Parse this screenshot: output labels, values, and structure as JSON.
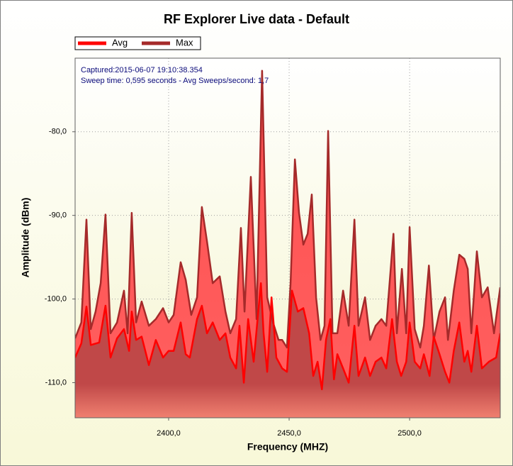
{
  "chart_data": {
    "type": "area",
    "title": "RF Explorer Live data - Default",
    "xlabel": "Frequency (MHZ)",
    "ylabel": "Amplitude (dBm)",
    "annotations": [
      "Captured:2015-06-07 19:10:38.354",
      "Sweep time: 0,595 seconds - Avg Sweeps/second: 1,7"
    ],
    "xlim": [
      2361.2,
      2537.6
    ],
    "ylim": [
      -114.2,
      -71.2
    ],
    "xticks": [
      {
        "value": 2400,
        "label": "2400,0"
      },
      {
        "value": 2450,
        "label": "2450,0"
      },
      {
        "value": 2500,
        "label": "2500,0"
      }
    ],
    "yticks": [
      {
        "value": -110,
        "label": "-110,0"
      },
      {
        "value": -100,
        "label": "-100,0"
      },
      {
        "value": -90,
        "label": "-90,0"
      },
      {
        "value": -80,
        "label": "-80,0"
      }
    ],
    "grid": true,
    "legend": "top-left",
    "series": [
      {
        "name": "Avg",
        "color": "#ff0000",
        "x": [
          2361.2,
          2363.8,
          2365.9,
          2367.7,
          2371.2,
          2373.8,
          2375.9,
          2378.6,
          2381.5,
          2383.6,
          2384.7,
          2386.5,
          2388.8,
          2391.8,
          2394.7,
          2397.7,
          2400.0,
          2402.1,
          2405.0,
          2407.1,
          2408.8,
          2411.8,
          2413.8,
          2415.9,
          2418.3,
          2421.2,
          2423.6,
          2425.6,
          2428.0,
          2429.4,
          2431.2,
          2433.0,
          2435.3,
          2438.3,
          2439.4,
          2440.9,
          2442.7,
          2444.7,
          2447.1,
          2449.1,
          2451.2,
          2453.6,
          2455.9,
          2458.3,
          2460.0,
          2461.8,
          2463.6,
          2465.3,
          2467.1,
          2468.6,
          2470.0,
          2472.4,
          2474.7,
          2477.1,
          2478.8,
          2481.5,
          2483.6,
          2485.9,
          2488.3,
          2490.3,
          2492.7,
          2494.7,
          2496.5,
          2498.6,
          2500.0,
          2502.1,
          2504.4,
          2505.9,
          2508.3,
          2510.0,
          2512.4,
          2514.7,
          2516.5,
          2518.3,
          2520.6,
          2522.7,
          2524.1,
          2525.6,
          2527.9,
          2530.0,
          2532.9,
          2535.9,
          2537.6
        ],
        "values": [
          -107.0,
          -105.3,
          -100.9,
          -105.5,
          -105.2,
          -100.8,
          -107.0,
          -104.7,
          -103.6,
          -106.2,
          -101.5,
          -104.9,
          -104.5,
          -107.9,
          -104.9,
          -107.0,
          -106.2,
          -106.2,
          -102.8,
          -106.6,
          -107.0,
          -102.4,
          -100.8,
          -104.1,
          -102.8,
          -104.9,
          -104.1,
          -107.0,
          -108.3,
          -103.2,
          -110.0,
          -102.4,
          -107.5,
          -98.1,
          -104.1,
          -108.7,
          -99.8,
          -107.0,
          -108.3,
          -108.7,
          -99.0,
          -101.5,
          -101.1,
          -104.1,
          -109.2,
          -107.5,
          -110.8,
          -104.9,
          -102.4,
          -109.6,
          -106.6,
          -108.3,
          -110.0,
          -103.2,
          -109.2,
          -107.0,
          -109.2,
          -107.5,
          -107.0,
          -108.3,
          -102.4,
          -107.5,
          -109.2,
          -107.5,
          -102.8,
          -107.5,
          -108.3,
          -106.6,
          -109.2,
          -104.5,
          -106.6,
          -108.7,
          -110.0,
          -106.2,
          -102.8,
          -107.5,
          -106.2,
          -108.7,
          -103.2,
          -108.3,
          -107.5,
          -107.0,
          -104.1
        ]
      },
      {
        "name": "Max",
        "color": "#a52a2a",
        "x": [
          2361.2,
          2363.8,
          2365.9,
          2367.7,
          2369.7,
          2371.8,
          2373.8,
          2375.9,
          2378.6,
          2381.5,
          2383.0,
          2384.7,
          2386.5,
          2388.8,
          2391.8,
          2394.7,
          2397.7,
          2400.0,
          2402.1,
          2405.0,
          2407.1,
          2409.4,
          2411.8,
          2413.8,
          2415.9,
          2418.3,
          2421.2,
          2423.6,
          2425.6,
          2428.0,
          2430.0,
          2431.5,
          2434.1,
          2436.5,
          2438.8,
          2440.9,
          2443.3,
          2445.6,
          2447.1,
          2449.1,
          2450.6,
          2452.4,
          2454.1,
          2455.9,
          2457.7,
          2459.4,
          2461.2,
          2463.0,
          2464.7,
          2466.2,
          2468.0,
          2470.0,
          2472.4,
          2474.7,
          2477.1,
          2478.8,
          2481.5,
          2483.6,
          2485.9,
          2488.3,
          2490.3,
          2493.3,
          2494.7,
          2496.8,
          2498.6,
          2500.0,
          2502.1,
          2504.4,
          2505.9,
          2508.0,
          2510.0,
          2512.4,
          2514.7,
          2515.9,
          2518.3,
          2520.6,
          2522.7,
          2524.1,
          2525.6,
          2527.9,
          2530.0,
          2532.4,
          2535.0,
          2537.6
        ],
        "values": [
          -104.7,
          -102.8,
          -90.5,
          -103.6,
          -101.5,
          -98.1,
          -89.9,
          -104.1,
          -102.8,
          -99.0,
          -104.1,
          -89.7,
          -102.8,
          -100.3,
          -103.2,
          -102.4,
          -101.1,
          -102.8,
          -101.9,
          -95.6,
          -97.7,
          -101.9,
          -99.8,
          -89.0,
          -93.1,
          -98.1,
          -97.3,
          -101.5,
          -104.1,
          -102.4,
          -91.5,
          -101.5,
          -85.4,
          -102.4,
          -72.7,
          -99.8,
          -102.8,
          -104.9,
          -104.9,
          -105.8,
          -98.1,
          -83.3,
          -89.7,
          -93.5,
          -92.2,
          -87.5,
          -99.8,
          -104.9,
          -103.2,
          -79.9,
          -104.1,
          -104.1,
          -99.0,
          -103.2,
          -90.5,
          -103.2,
          -99.8,
          -104.9,
          -103.2,
          -102.4,
          -103.2,
          -92.2,
          -104.1,
          -96.4,
          -104.1,
          -91.4,
          -103.6,
          -105.8,
          -103.2,
          -96.0,
          -104.9,
          -101.5,
          -99.8,
          -104.9,
          -99.0,
          -94.7,
          -95.2,
          -96.4,
          -104.1,
          -94.3,
          -99.8,
          -98.6,
          -104.1,
          -98.6
        ]
      }
    ]
  }
}
